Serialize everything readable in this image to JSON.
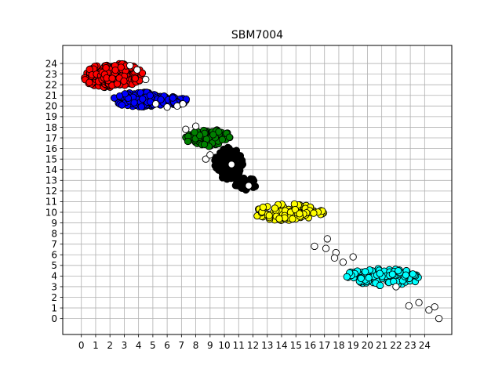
{
  "chart_data": {
    "type": "scatter",
    "title": "SBM7004",
    "xlabel": "",
    "ylabel": "",
    "xlim": [
      -1.3,
      25.9
    ],
    "ylim": [
      -1.5,
      25.7
    ],
    "grid": true,
    "legend": "none",
    "x_ticks": [
      "0",
      "1",
      "2",
      "3",
      "4",
      "5",
      "6",
      "7",
      "8",
      "9",
      "10",
      "11",
      "12",
      "13",
      "14",
      "15",
      "16",
      "17",
      "18",
      "19",
      "20",
      "21",
      "22",
      "23",
      "24"
    ],
    "y_ticks": [
      "0",
      "1",
      "2",
      "3",
      "4",
      "5",
      "6",
      "7",
      "8",
      "9",
      "10",
      "11",
      "12",
      "13",
      "14",
      "15",
      "16",
      "17",
      "18",
      "19",
      "20",
      "21",
      "22",
      "23",
      "24"
    ],
    "point_edge_color": "#000000",
    "series": [
      {
        "color": "#ff0000",
        "clusters": [
          {
            "cx": 1.6,
            "cy": 22.8,
            "rx": 1.4,
            "ry": 1.1,
            "n": 150
          },
          {
            "cx": 2.8,
            "cy": 22.9,
            "rx": 1.5,
            "ry": 1.1,
            "n": 130
          }
        ]
      },
      {
        "color": "#0000ff",
        "clusters": [
          {
            "cx": 4.2,
            "cy": 20.6,
            "rx": 2.0,
            "ry": 0.7,
            "n": 170
          },
          {
            "cx": 6.4,
            "cy": 20.5,
            "rx": 1.0,
            "ry": 0.4,
            "n": 40
          }
        ]
      },
      {
        "color": "#008000",
        "clusters": [
          {
            "cx": 8.9,
            "cy": 17.0,
            "rx": 1.6,
            "ry": 0.8,
            "n": 120
          }
        ]
      },
      {
        "color": "#000000",
        "clusters": [
          {
            "cx": 10.3,
            "cy": 14.6,
            "rx": 1.0,
            "ry": 1.5,
            "n": 110
          },
          {
            "cx": 11.5,
            "cy": 12.7,
            "rx": 0.8,
            "ry": 0.6,
            "n": 40
          }
        ]
      },
      {
        "color": "#ffff00",
        "clusters": [
          {
            "cx": 14.5,
            "cy": 10.0,
            "rx": 2.5,
            "ry": 0.8,
            "n": 100
          }
        ]
      },
      {
        "color": "#00ffff",
        "clusters": [
          {
            "cx": 21.0,
            "cy": 3.9,
            "rx": 2.8,
            "ry": 0.8,
            "n": 110
          }
        ]
      },
      {
        "color": "#ffffff",
        "points": [
          [
            3.4,
            23.8
          ],
          [
            3.9,
            23.4
          ],
          [
            4.5,
            22.5
          ],
          [
            5.2,
            20.2
          ],
          [
            6.0,
            19.9
          ],
          [
            6.7,
            20.0
          ],
          [
            7.1,
            20.2
          ],
          [
            7.3,
            17.8
          ],
          [
            8.0,
            18.1
          ],
          [
            8.7,
            15.0
          ],
          [
            9.0,
            15.4
          ],
          [
            10.5,
            14.5
          ],
          [
            11.7,
            12.5
          ],
          [
            16.3,
            6.8
          ],
          [
            17.1,
            6.6
          ],
          [
            17.2,
            7.5
          ],
          [
            17.8,
            6.2
          ],
          [
            17.7,
            5.7
          ],
          [
            18.3,
            5.3
          ],
          [
            19.0,
            5.8
          ],
          [
            22.0,
            3.0
          ],
          [
            22.9,
            1.2
          ],
          [
            23.6,
            1.5
          ],
          [
            24.3,
            0.8
          ],
          [
            24.7,
            1.1
          ],
          [
            25.0,
            0.0
          ]
        ]
      }
    ]
  }
}
